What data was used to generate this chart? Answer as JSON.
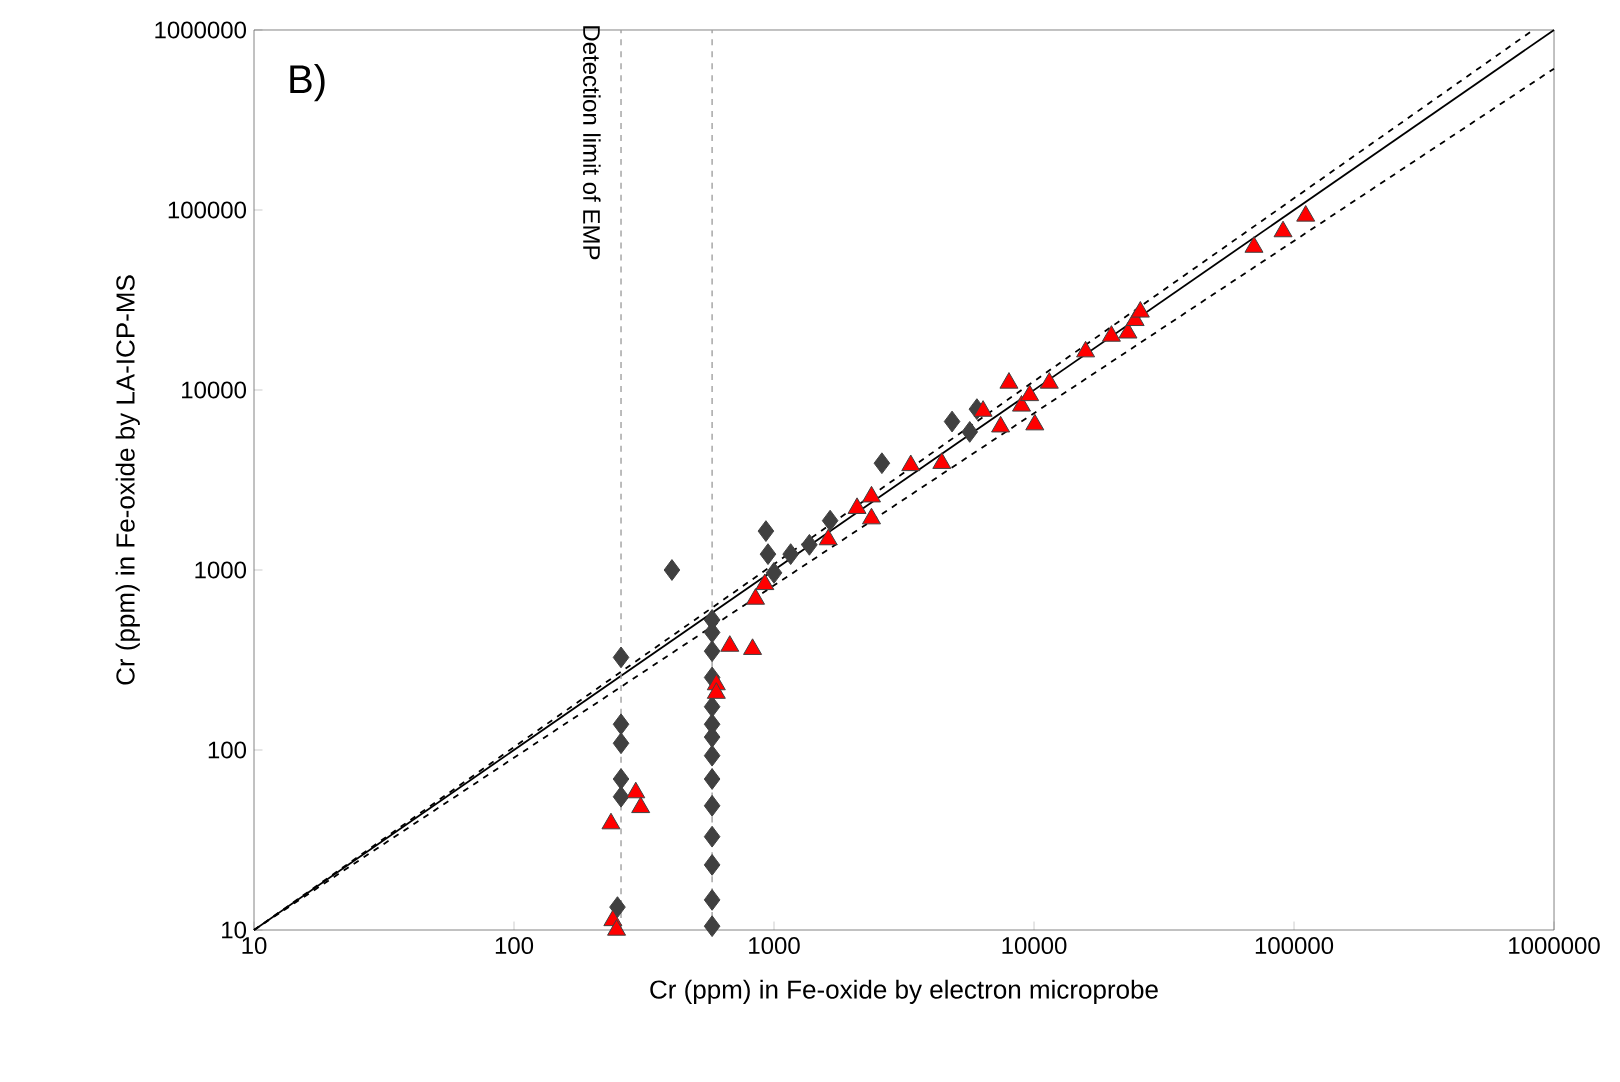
{
  "chart_data": {
    "type": "scatter",
    "xlabel": "Cr (ppm) in Fe-oxide by electron microprobe",
    "ylabel": "Cr (ppm) in Fe-oxide by LA-ICP-MS",
    "annotations": [
      "B)"
    ],
    "log": "xy",
    "xlim": [
      10,
      1000000
    ],
    "ylim": [
      10,
      1000000
    ],
    "xticks": [
      10,
      100,
      1000,
      10000,
      100000,
      1000000
    ],
    "yticks": [
      10,
      100,
      1000,
      10000,
      100000,
      1000000
    ],
    "ref_lines": [
      {
        "axis": "x",
        "value": 258,
        "label": "Detection limit of EMP",
        "color": "#a0a0a0",
        "line_style": "dashed"
      },
      {
        "axis": "x",
        "value": 578,
        "color": "#a0a0a0",
        "line_style": "dashed"
      }
    ],
    "series": [
      {
        "type": "line",
        "color": "#000000",
        "line_style": "solid",
        "marker": "none",
        "x": [
          10,
          1000000
        ],
        "values": [
          10,
          1000000
        ]
      },
      {
        "type": "line",
        "color": "#000000",
        "line_style": "dashed",
        "marker": "none",
        "x": [
          10,
          831800
        ],
        "values": [
          10,
          1000000
        ]
      },
      {
        "type": "line",
        "color": "#000000",
        "line_style": "dashed",
        "marker": "none",
        "x": [
          10,
          1000000
        ],
        "values": [
          10,
          610000
        ]
      },
      {
        "color": "#404040",
        "marker": "diamond",
        "x": [
          258,
          258,
          258,
          258,
          258,
          250,
          578,
          578,
          578,
          578,
          578,
          578,
          578,
          578,
          578,
          578,
          578,
          578,
          578,
          578,
          405,
          931,
          948,
          1000,
          1159,
          1368,
          1644,
          2600,
          4840,
          5660,
          6030
        ],
        "values": [
          327,
          139,
          109,
          69,
          55,
          13.4,
          528,
          450,
          354,
          253,
          174,
          139,
          118,
          93,
          69,
          49,
          33,
          23,
          14.7,
          10.5,
          1000,
          1645,
          1225,
          964,
          1225,
          1380,
          1880,
          3920,
          6680,
          5850,
          7830
        ]
      },
      {
        "color": "#ff0000",
        "marker": "triangle",
        "x": [
          236,
          294,
          307,
          240,
          248,
          600,
          600,
          676,
          827,
          849,
          922,
          1616,
          2086,
          2371,
          2371,
          3357,
          4420,
          6370,
          7440,
          8010,
          8950,
          9620,
          10070,
          11450,
          15790,
          19850,
          22980,
          24480,
          25640,
          70150,
          90740,
          110900
        ],
        "values": [
          39,
          58,
          48,
          11.3,
          10,
          231,
          207,
          378,
          363,
          690,
          832,
          1476,
          2203,
          2553,
          1929,
          3812,
          3920,
          7640,
          6250,
          10940,
          8160,
          9330,
          6420,
          10940,
          16330,
          19950,
          20780,
          24380,
          27160,
          62230,
          75900,
          92700
        ]
      }
    ]
  }
}
